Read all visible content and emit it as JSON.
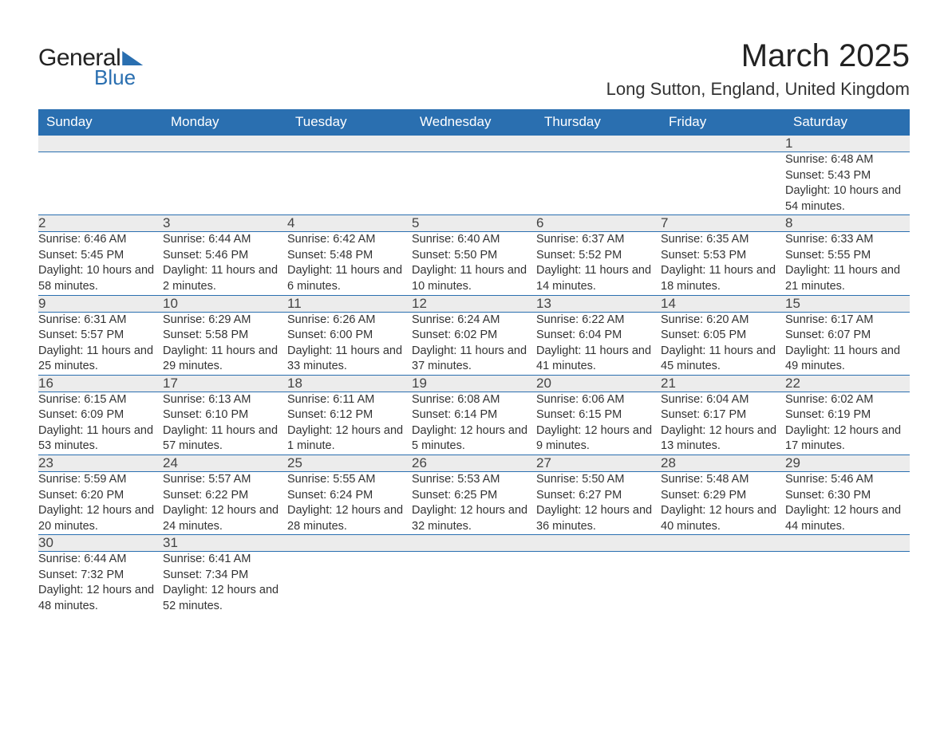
{
  "logo": {
    "line1": "General",
    "line2": "Blue"
  },
  "title": "March 2025",
  "location": "Long Sutton, England, United Kingdom",
  "theme": {
    "header_bg": "#2a6fb0",
    "header_fg": "#ffffff",
    "daynum_bg": "#ececec",
    "row_border": "#2a6fb0",
    "text_color": "#333333",
    "page_bg": "#ffffff"
  },
  "weekday_headers": [
    "Sunday",
    "Monday",
    "Tuesday",
    "Wednesday",
    "Thursday",
    "Friday",
    "Saturday"
  ],
  "labels": {
    "sunrise": "Sunrise:",
    "sunset": "Sunset:",
    "daylight": "Daylight:"
  },
  "weeks": [
    [
      null,
      null,
      null,
      null,
      null,
      null,
      {
        "n": "1",
        "sunrise": "6:48 AM",
        "sunset": "5:43 PM",
        "daylight": "10 hours and 54 minutes."
      }
    ],
    [
      {
        "n": "2",
        "sunrise": "6:46 AM",
        "sunset": "5:45 PM",
        "daylight": "10 hours and 58 minutes."
      },
      {
        "n": "3",
        "sunrise": "6:44 AM",
        "sunset": "5:46 PM",
        "daylight": "11 hours and 2 minutes."
      },
      {
        "n": "4",
        "sunrise": "6:42 AM",
        "sunset": "5:48 PM",
        "daylight": "11 hours and 6 minutes."
      },
      {
        "n": "5",
        "sunrise": "6:40 AM",
        "sunset": "5:50 PM",
        "daylight": "11 hours and 10 minutes."
      },
      {
        "n": "6",
        "sunrise": "6:37 AM",
        "sunset": "5:52 PM",
        "daylight": "11 hours and 14 minutes."
      },
      {
        "n": "7",
        "sunrise": "6:35 AM",
        "sunset": "5:53 PM",
        "daylight": "11 hours and 18 minutes."
      },
      {
        "n": "8",
        "sunrise": "6:33 AM",
        "sunset": "5:55 PM",
        "daylight": "11 hours and 21 minutes."
      }
    ],
    [
      {
        "n": "9",
        "sunrise": "6:31 AM",
        "sunset": "5:57 PM",
        "daylight": "11 hours and 25 minutes."
      },
      {
        "n": "10",
        "sunrise": "6:29 AM",
        "sunset": "5:58 PM",
        "daylight": "11 hours and 29 minutes."
      },
      {
        "n": "11",
        "sunrise": "6:26 AM",
        "sunset": "6:00 PM",
        "daylight": "11 hours and 33 minutes."
      },
      {
        "n": "12",
        "sunrise": "6:24 AM",
        "sunset": "6:02 PM",
        "daylight": "11 hours and 37 minutes."
      },
      {
        "n": "13",
        "sunrise": "6:22 AM",
        "sunset": "6:04 PM",
        "daylight": "11 hours and 41 minutes."
      },
      {
        "n": "14",
        "sunrise": "6:20 AM",
        "sunset": "6:05 PM",
        "daylight": "11 hours and 45 minutes."
      },
      {
        "n": "15",
        "sunrise": "6:17 AM",
        "sunset": "6:07 PM",
        "daylight": "11 hours and 49 minutes."
      }
    ],
    [
      {
        "n": "16",
        "sunrise": "6:15 AM",
        "sunset": "6:09 PM",
        "daylight": "11 hours and 53 minutes."
      },
      {
        "n": "17",
        "sunrise": "6:13 AM",
        "sunset": "6:10 PM",
        "daylight": "11 hours and 57 minutes."
      },
      {
        "n": "18",
        "sunrise": "6:11 AM",
        "sunset": "6:12 PM",
        "daylight": "12 hours and 1 minute."
      },
      {
        "n": "19",
        "sunrise": "6:08 AM",
        "sunset": "6:14 PM",
        "daylight": "12 hours and 5 minutes."
      },
      {
        "n": "20",
        "sunrise": "6:06 AM",
        "sunset": "6:15 PM",
        "daylight": "12 hours and 9 minutes."
      },
      {
        "n": "21",
        "sunrise": "6:04 AM",
        "sunset": "6:17 PM",
        "daylight": "12 hours and 13 minutes."
      },
      {
        "n": "22",
        "sunrise": "6:02 AM",
        "sunset": "6:19 PM",
        "daylight": "12 hours and 17 minutes."
      }
    ],
    [
      {
        "n": "23",
        "sunrise": "5:59 AM",
        "sunset": "6:20 PM",
        "daylight": "12 hours and 20 minutes."
      },
      {
        "n": "24",
        "sunrise": "5:57 AM",
        "sunset": "6:22 PM",
        "daylight": "12 hours and 24 minutes."
      },
      {
        "n": "25",
        "sunrise": "5:55 AM",
        "sunset": "6:24 PM",
        "daylight": "12 hours and 28 minutes."
      },
      {
        "n": "26",
        "sunrise": "5:53 AM",
        "sunset": "6:25 PM",
        "daylight": "12 hours and 32 minutes."
      },
      {
        "n": "27",
        "sunrise": "5:50 AM",
        "sunset": "6:27 PM",
        "daylight": "12 hours and 36 minutes."
      },
      {
        "n": "28",
        "sunrise": "5:48 AM",
        "sunset": "6:29 PM",
        "daylight": "12 hours and 40 minutes."
      },
      {
        "n": "29",
        "sunrise": "5:46 AM",
        "sunset": "6:30 PM",
        "daylight": "12 hours and 44 minutes."
      }
    ],
    [
      {
        "n": "30",
        "sunrise": "6:44 AM",
        "sunset": "7:32 PM",
        "daylight": "12 hours and 48 minutes."
      },
      {
        "n": "31",
        "sunrise": "6:41 AM",
        "sunset": "7:34 PM",
        "daylight": "12 hours and 52 minutes."
      },
      null,
      null,
      null,
      null,
      null
    ]
  ]
}
